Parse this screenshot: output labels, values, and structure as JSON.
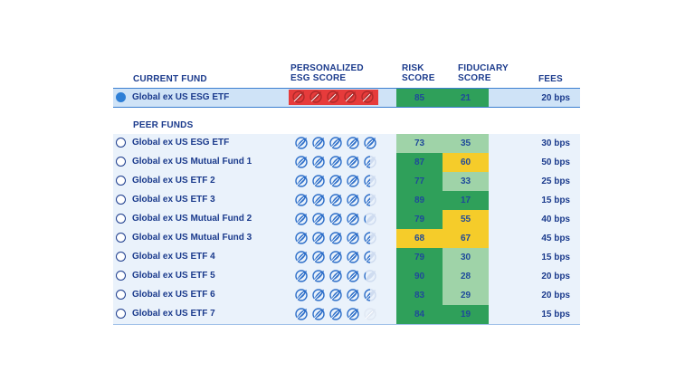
{
  "headers": {
    "current_fund": "CURRENT FUND",
    "esg_line1": "PERSONALIZED",
    "esg_line2": "ESG SCORE",
    "risk_line1": "RISK",
    "risk_line2": "SCORE",
    "fid_line1": "FIDUCIARY",
    "fid_line2": "SCORE",
    "fees": "FEES",
    "peer_funds": "PEER FUNDS"
  },
  "colors": {
    "dark_green": "#2fa05a",
    "light_green": "#9fd3a8",
    "yellow": "#f5cc2a",
    "red": "#e63b3b",
    "leaf_blue": "#2e6fc9"
  },
  "current_fund": {
    "name": "Global ex US ESG ETF",
    "esg_leaves": 5,
    "esg_full": 5,
    "risk": "85",
    "risk_color": "dark_green",
    "fiduciary": "21",
    "fid_color": "dark_green",
    "fees": "20 bps",
    "selected": true
  },
  "peer_funds": [
    {
      "name": "Global ex US ESG ETF",
      "esg_full": 5,
      "risk": "73",
      "risk_color": "light_green",
      "fiduciary": "35",
      "fid_color": "light_green",
      "fees": "30 bps"
    },
    {
      "name": "Global ex US Mutual Fund 1",
      "esg_full": 4.5,
      "risk": "87",
      "risk_color": "dark_green",
      "fiduciary": "60",
      "fid_color": "yellow",
      "fees": "50 bps"
    },
    {
      "name": "Global ex US ETF 2",
      "esg_full": 4.5,
      "risk": "77",
      "risk_color": "dark_green",
      "fiduciary": "33",
      "fid_color": "light_green",
      "fees": "25 bps"
    },
    {
      "name": "Global ex US ETF 3",
      "esg_full": 4.5,
      "risk": "89",
      "risk_color": "dark_green",
      "fiduciary": "17",
      "fid_color": "dark_green",
      "fees": "15 bps"
    },
    {
      "name": "Global ex US Mutual Fund 2",
      "esg_full": 4.2,
      "risk": "79",
      "risk_color": "dark_green",
      "fiduciary": "55",
      "fid_color": "yellow",
      "fees": "40 bps"
    },
    {
      "name": "Global ex US Mutual Fund 3",
      "esg_full": 4.5,
      "risk": "68",
      "risk_color": "yellow",
      "fiduciary": "67",
      "fid_color": "yellow",
      "fees": "45 bps"
    },
    {
      "name": "Global ex US ETF 4",
      "esg_full": 4.5,
      "risk": "79",
      "risk_color": "dark_green",
      "fiduciary": "30",
      "fid_color": "light_green",
      "fees": "15 bps"
    },
    {
      "name": "Global ex US ETF 5",
      "esg_full": 4.2,
      "risk": "90",
      "risk_color": "dark_green",
      "fiduciary": "28",
      "fid_color": "light_green",
      "fees": "20 bps"
    },
    {
      "name": "Global ex US ETF 6",
      "esg_full": 4.5,
      "risk": "83",
      "risk_color": "dark_green",
      "fiduciary": "29",
      "fid_color": "light_green",
      "fees": "20 bps"
    },
    {
      "name": "Global ex US ETF 7",
      "esg_full": 4,
      "risk": "84",
      "risk_color": "dark_green",
      "fiduciary": "19",
      "fid_color": "dark_green",
      "fees": "15 bps"
    }
  ]
}
